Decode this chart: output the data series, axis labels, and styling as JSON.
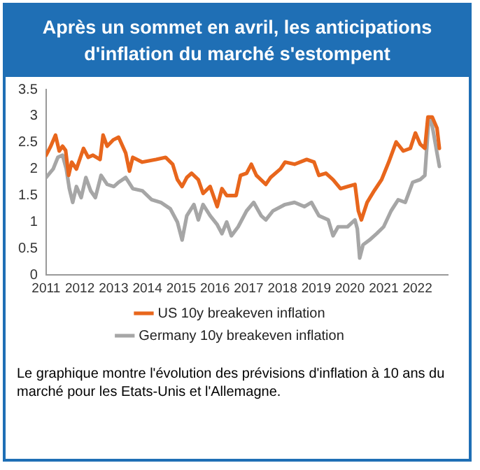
{
  "chart_data": {
    "type": "line",
    "title": "Après un sommet en avril, les anticipations d'inflation du marché s'estompent",
    "annotations": [
      "Le graphique montre l'évolution des prévisions d'inflation à 10 ans du marché pour les Etats-Unis et l'Allemagne."
    ],
    "xlim": [
      2011,
      2022.9
    ],
    "xticks": [
      2011,
      2012,
      2013,
      2014,
      2015,
      2016,
      2017,
      2018,
      2019,
      2020,
      2021,
      2022
    ],
    "ylim": [
      0,
      3.5
    ],
    "yticks": [
      0,
      0.5,
      1,
      1.5,
      2,
      2.5,
      3,
      3.5
    ],
    "grid": false,
    "legend": "bottom",
    "marker": "none",
    "line_style": "solid",
    "series": [
      {
        "name": "US 10y breakeven inflation",
        "color": "#e8661c",
        "x": [
          2011.0,
          2011.14,
          2011.28,
          2011.39,
          2011.49,
          2011.58,
          2011.67,
          2011.76,
          2011.9,
          2012.11,
          2012.25,
          2012.39,
          2012.6,
          2012.69,
          2012.81,
          2012.99,
          2013.15,
          2013.36,
          2013.47,
          2013.57,
          2013.85,
          2014.26,
          2014.54,
          2014.75,
          2014.89,
          2015.03,
          2015.17,
          2015.31,
          2015.51,
          2015.65,
          2015.86,
          2016.07,
          2016.21,
          2016.35,
          2016.63,
          2016.76,
          2016.94,
          2017.08,
          2017.23,
          2017.51,
          2017.65,
          2017.94,
          2018.08,
          2018.36,
          2018.72,
          2018.94,
          2019.08,
          2019.29,
          2019.5,
          2019.72,
          2019.93,
          2020.15,
          2020.25,
          2020.34,
          2020.51,
          2020.72,
          2020.94,
          2021.15,
          2021.37,
          2021.58,
          2021.79,
          2021.94,
          2022.08,
          2022.22,
          2022.31,
          2022.44,
          2022.58,
          2022.65
        ],
        "values": [
          2.26,
          2.43,
          2.64,
          2.34,
          2.43,
          2.35,
          1.88,
          2.13,
          2.0,
          2.39,
          2.22,
          2.26,
          2.18,
          2.64,
          2.43,
          2.55,
          2.6,
          2.3,
          1.96,
          2.22,
          2.13,
          2.18,
          2.22,
          2.09,
          1.8,
          1.67,
          1.84,
          1.92,
          1.8,
          1.54,
          1.67,
          1.29,
          1.63,
          1.5,
          1.5,
          1.88,
          1.92,
          2.09,
          1.88,
          1.71,
          1.84,
          2.0,
          2.13,
          2.09,
          2.18,
          2.13,
          1.88,
          1.92,
          1.8,
          1.63,
          1.67,
          1.71,
          1.21,
          1.04,
          1.37,
          1.59,
          1.8,
          2.13,
          2.51,
          2.34,
          2.39,
          2.68,
          2.47,
          2.39,
          2.98,
          2.98,
          2.77,
          2.39
        ]
      },
      {
        "name": "Germany 10y breakeven inflation",
        "color": "#a6a6a6",
        "x": [
          2011.0,
          2011.21,
          2011.35,
          2011.49,
          2011.6,
          2011.69,
          2011.79,
          2011.9,
          2012.04,
          2012.18,
          2012.32,
          2012.46,
          2012.63,
          2012.81,
          2013.01,
          2013.15,
          2013.36,
          2013.57,
          2013.85,
          2014.13,
          2014.4,
          2014.68,
          2014.89,
          2015.03,
          2015.17,
          2015.38,
          2015.51,
          2015.65,
          2015.86,
          2016.07,
          2016.21,
          2016.35,
          2016.49,
          2016.69,
          2016.94,
          2017.15,
          2017.37,
          2017.51,
          2017.72,
          2018.08,
          2018.36,
          2018.65,
          2018.86,
          2019.08,
          2019.36,
          2019.5,
          2019.65,
          2019.93,
          2020.15,
          2020.22,
          2020.29,
          2020.39,
          2020.58,
          2020.79,
          2021.0,
          2021.22,
          2021.43,
          2021.64,
          2021.86,
          2022.08,
          2022.22,
          2022.34,
          2022.44,
          2022.58,
          2022.65
        ],
        "values": [
          1.84,
          2.0,
          2.22,
          2.26,
          2.0,
          1.63,
          1.37,
          1.67,
          1.46,
          1.84,
          1.59,
          1.46,
          1.88,
          1.71,
          1.67,
          1.75,
          1.84,
          1.63,
          1.59,
          1.42,
          1.37,
          1.25,
          1.0,
          0.66,
          1.12,
          1.33,
          1.04,
          1.33,
          1.12,
          0.95,
          0.78,
          1.0,
          0.74,
          0.91,
          1.21,
          1.37,
          1.12,
          1.04,
          1.21,
          1.33,
          1.37,
          1.29,
          1.37,
          1.12,
          1.04,
          0.74,
          0.91,
          0.91,
          1.04,
          0.87,
          0.32,
          0.57,
          0.66,
          0.78,
          0.91,
          1.21,
          1.42,
          1.37,
          1.75,
          1.8,
          1.88,
          2.98,
          2.81,
          2.3,
          2.05
        ]
      }
    ]
  }
}
